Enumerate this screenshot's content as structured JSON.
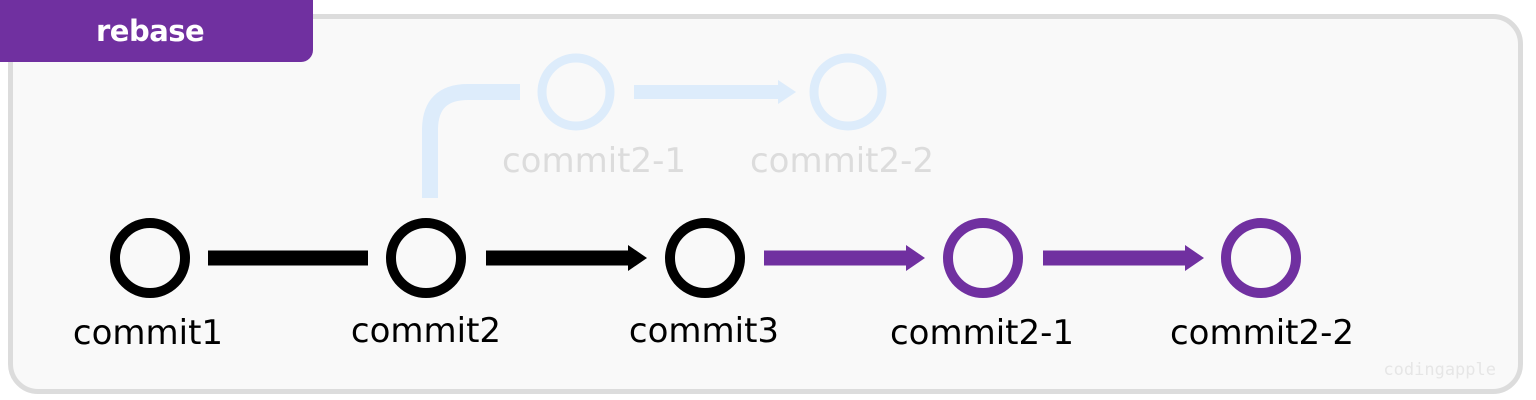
{
  "title": "rebase",
  "watermark": "codingapple",
  "colors": {
    "main": "#000000",
    "rebased": "#7030a0",
    "ghost": "#ddecfb",
    "ghost_text": "#dcdcdc",
    "badge": "#7030a0"
  },
  "main_commits": [
    {
      "id": "c1",
      "label": "commit1",
      "style": "main"
    },
    {
      "id": "c2",
      "label": "commit2",
      "style": "main"
    },
    {
      "id": "c3",
      "label": "commit3",
      "style": "main"
    },
    {
      "id": "c21",
      "label": "commit2-1",
      "style": "rebased"
    },
    {
      "id": "c22",
      "label": "commit2-2",
      "style": "rebased"
    }
  ],
  "ghost_commits": [
    {
      "id": "g21",
      "label": "commit2-1",
      "style": "ghost"
    },
    {
      "id": "g22",
      "label": "commit2-2",
      "style": "ghost"
    }
  ]
}
